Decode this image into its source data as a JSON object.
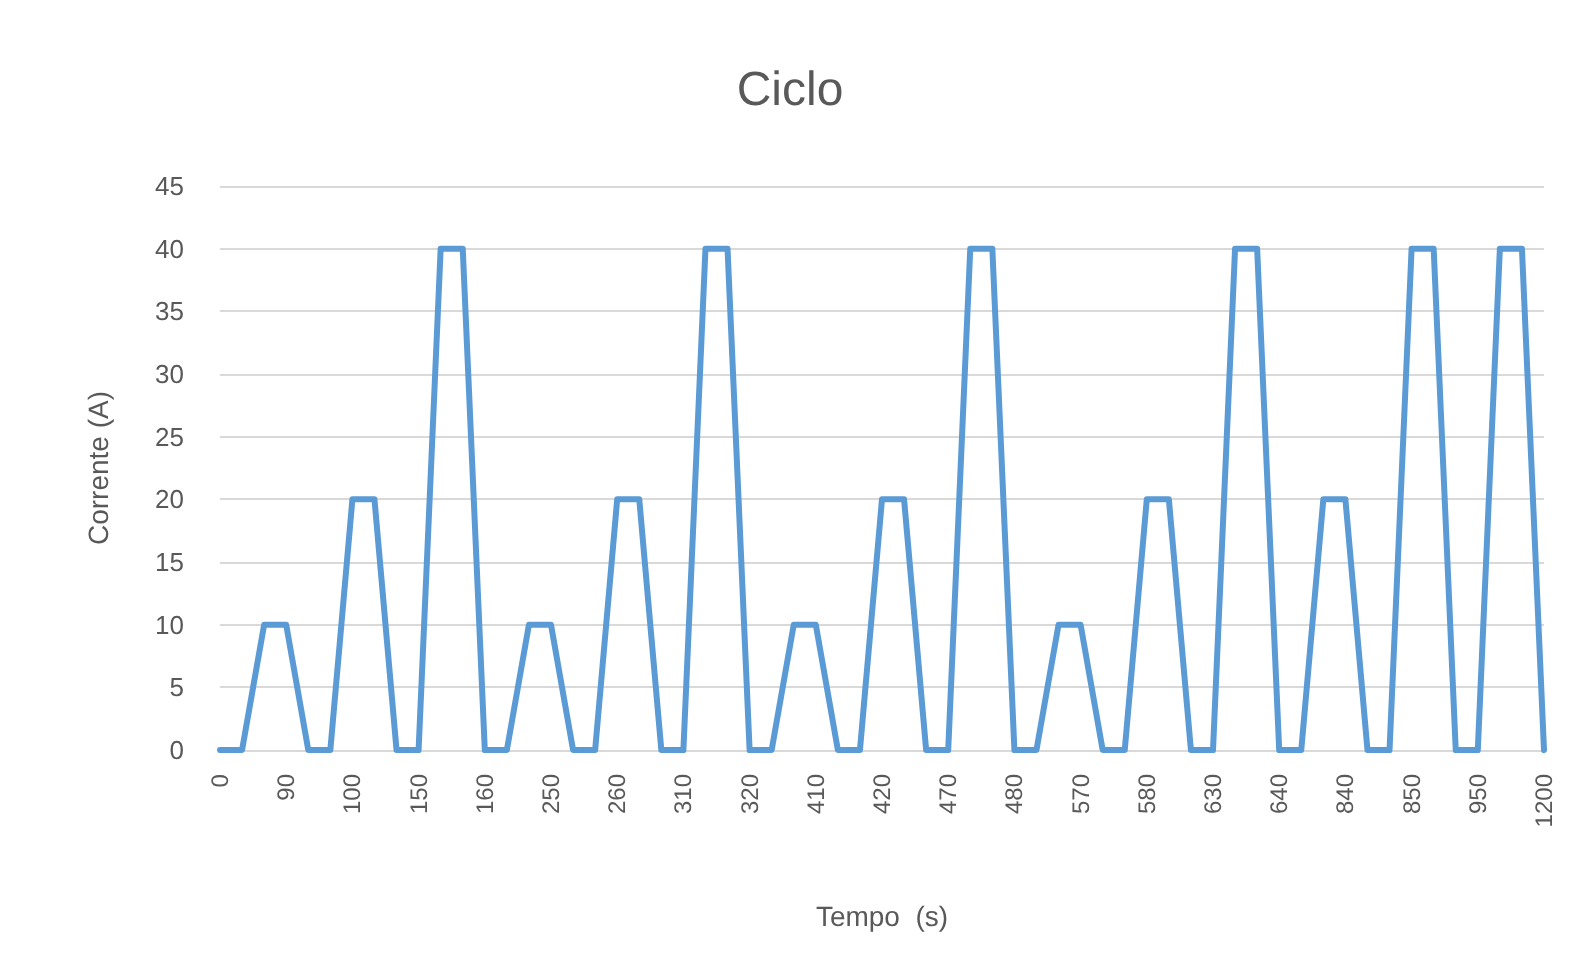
{
  "chart_data": {
    "type": "line",
    "title": "Ciclo",
    "xlabel": "Tempo  (s)",
    "ylabel": "Corrente (A)",
    "categories": [
      "0",
      null,
      null,
      "90",
      null,
      null,
      "100",
      null,
      null,
      "150",
      null,
      null,
      "160",
      null,
      null,
      "250",
      null,
      null,
      "260",
      null,
      null,
      "310",
      null,
      null,
      "320",
      null,
      null,
      "410",
      null,
      null,
      "420",
      null,
      null,
      "470",
      null,
      null,
      "480",
      null,
      null,
      "570",
      null,
      null,
      "580",
      null,
      null,
      "630",
      null,
      null,
      "640",
      null,
      null,
      "840",
      null,
      null,
      "850",
      null,
      null,
      "950",
      null,
      null,
      "1200"
    ],
    "series": [
      {
        "color": "#5b9bd5",
        "values": [
          0,
          0,
          10,
          10,
          0,
          0,
          20,
          20,
          0,
          0,
          40,
          40,
          0,
          0,
          10,
          10,
          0,
          0,
          20,
          20,
          0,
          0,
          40,
          40,
          0,
          0,
          10,
          10,
          0,
          0,
          20,
          20,
          0,
          0,
          40,
          40,
          0,
          0,
          10,
          10,
          0,
          0,
          20,
          20,
          0,
          0,
          40,
          40,
          0,
          0,
          20,
          20,
          0,
          0,
          40,
          40,
          0,
          0,
          40,
          40,
          0
        ]
      }
    ],
    "ylim": [
      0,
      45
    ],
    "yticks": [
      0,
      5,
      10,
      15,
      20,
      25,
      30,
      35,
      40,
      45
    ],
    "grid": "y",
    "marker": "none",
    "line_style": "solid"
  }
}
